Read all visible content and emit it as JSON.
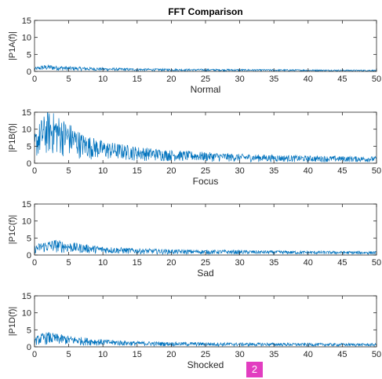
{
  "chart_data": [
    {
      "type": "line",
      "title": "FFT Comparison",
      "xlabel": "Normal",
      "ylabel": "|P1A(f)|",
      "xlim": [
        0,
        50
      ],
      "ylim": [
        0,
        15
      ],
      "xticks": [
        0,
        5,
        10,
        15,
        20,
        25,
        30,
        35,
        40,
        45,
        50
      ],
      "yticks": [
        0,
        5,
        10,
        15
      ],
      "color": "#0072BD",
      "grid": false,
      "envelope": {
        "x": [
          0,
          1,
          2,
          3,
          5,
          10,
          15,
          20,
          30,
          40,
          50
        ],
        "y": [
          1.0,
          1.6,
          1.8,
          1.6,
          1.3,
          1.0,
          0.8,
          0.7,
          0.6,
          0.5,
          0.4
        ]
      }
    },
    {
      "type": "line",
      "title": "",
      "xlabel": "Focus",
      "ylabel": "|P1B(f)|",
      "xlim": [
        0,
        50
      ],
      "ylim": [
        0,
        15
      ],
      "xticks": [
        0,
        5,
        10,
        15,
        20,
        25,
        30,
        35,
        40,
        45,
        50
      ],
      "yticks": [
        0,
        5,
        10,
        15
      ],
      "color": "#0072BD",
      "grid": false,
      "envelope": {
        "x": [
          0,
          1,
          2,
          3,
          5,
          7,
          10,
          15,
          20,
          30,
          40,
          50
        ],
        "y": [
          8,
          12,
          14,
          13.5,
          11,
          8,
          6,
          4.5,
          3.5,
          2.5,
          2,
          1.8
        ]
      }
    },
    {
      "type": "line",
      "title": "",
      "xlabel": "Sad",
      "ylabel": "|P1C(f)|",
      "xlim": [
        0,
        50
      ],
      "ylim": [
        0,
        15
      ],
      "xticks": [
        0,
        5,
        10,
        15,
        20,
        25,
        30,
        35,
        40,
        45,
        50
      ],
      "yticks": [
        0,
        5,
        10,
        15
      ],
      "color": "#0072BD",
      "grid": false,
      "envelope": {
        "x": [
          0,
          1,
          3,
          5,
          10,
          15,
          20,
          30,
          40,
          50
        ],
        "y": [
          2.5,
          3.5,
          4.2,
          3.5,
          2.3,
          1.8,
          1.5,
          1.3,
          1.1,
          1.0
        ]
      }
    },
    {
      "type": "line",
      "title": "",
      "xlabel": "Shocked",
      "ylabel": "|P1D(f)|",
      "xlim": [
        0,
        50
      ],
      "ylim": [
        0,
        15
      ],
      "xticks": [
        0,
        5,
        10,
        15,
        20,
        25,
        30,
        35,
        40,
        45,
        50
      ],
      "yticks": [
        0,
        5,
        10,
        15
      ],
      "color": "#0072BD",
      "grid": false,
      "envelope": {
        "x": [
          0,
          1,
          2,
          3,
          5,
          10,
          15,
          20,
          30,
          40,
          50
        ],
        "y": [
          2.5,
          3.6,
          4.0,
          3.6,
          3.0,
          2.0,
          1.5,
          1.3,
          1.1,
          1.0,
          0.9
        ]
      }
    }
  ],
  "badge": {
    "label": "2",
    "color": "#e23dc0"
  }
}
